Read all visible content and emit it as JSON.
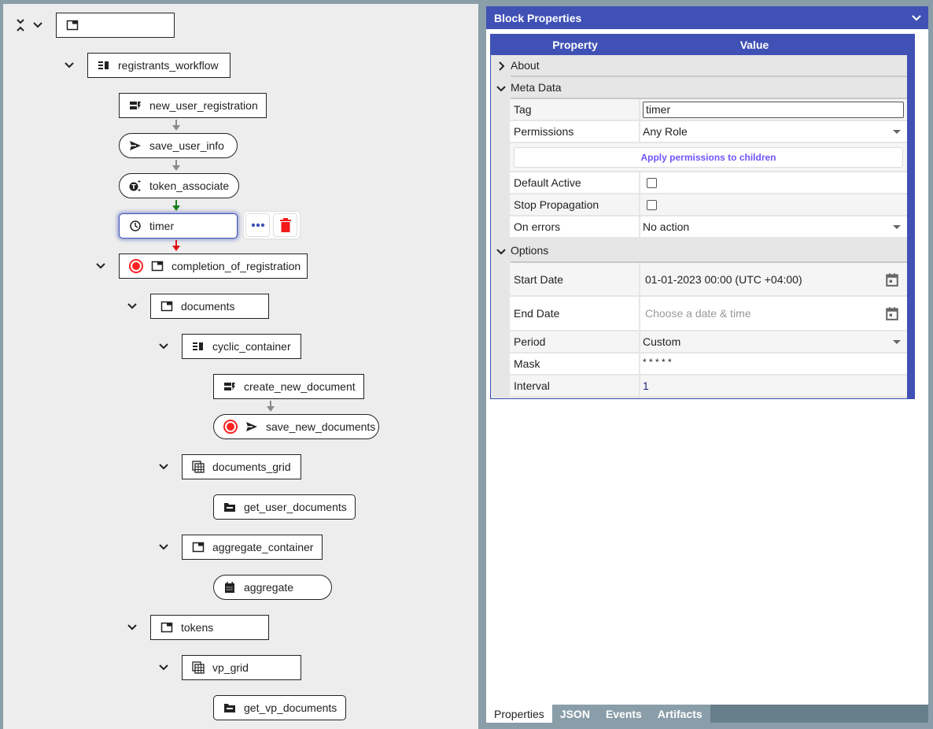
{
  "tree": {
    "root": {
      "label": ""
    },
    "nodes": [
      {
        "label": "registrants_workflow",
        "icon": "workflow-icon"
      },
      {
        "label": "new_user_registration",
        "icon": "request-document-icon"
      },
      {
        "label": "save_user_info",
        "icon": "send-icon"
      },
      {
        "label": "token_associate",
        "icon": "token-icon"
      },
      {
        "label": "timer",
        "icon": "clock-icon"
      },
      {
        "label": "completion_of_registration",
        "icon": "container-icon"
      },
      {
        "label": "documents",
        "icon": "container-icon"
      },
      {
        "label": "cyclic_container",
        "icon": "workflow-icon"
      },
      {
        "label": "create_new_document",
        "icon": "request-document-icon"
      },
      {
        "label": "save_new_documents",
        "icon": "send-icon"
      },
      {
        "label": "documents_grid",
        "icon": "grid-icon"
      },
      {
        "label": "get_user_documents",
        "icon": "folder-icon"
      },
      {
        "label": "aggregate_container",
        "icon": "container-icon"
      },
      {
        "label": "aggregate",
        "icon": "calendar-icon"
      },
      {
        "label": "tokens",
        "icon": "container-icon"
      },
      {
        "label": "vp_grid",
        "icon": "grid-icon"
      },
      {
        "label": "get_vp_documents",
        "icon": "folder-icon"
      }
    ],
    "colors": {
      "arrow_default": "#8a8a8a",
      "arrow_success": "#1a7f1a",
      "arrow_error": "#e0101a",
      "selected": "#3f51b5",
      "delete": "#f21b1b"
    }
  },
  "panel": {
    "title": "Block Properties",
    "columns": {
      "property": "Property",
      "value": "Value"
    },
    "groups": {
      "about": "About",
      "meta": "Meta Data",
      "options": "Options"
    },
    "meta": {
      "tag_label": "Tag",
      "tag_value": "timer",
      "permissions_label": "Permissions",
      "permissions_value": "Any Role",
      "apply_button": "Apply permissions to children",
      "default_active_label": "Default Active",
      "default_active": false,
      "stop_propagation_label": "Stop Propagation",
      "stop_propagation": false,
      "on_errors_label": "On errors",
      "on_errors_value": "No action"
    },
    "options": {
      "start_date_label": "Start Date",
      "start_date_value": "01-01-2023 00:00 (UTC +04:00)",
      "end_date_label": "End Date",
      "end_date_placeholder": "Choose a date & time",
      "period_label": "Period",
      "period_value": "Custom",
      "mask_label": "Mask",
      "mask_value": "* * * * *",
      "interval_label": "Interval",
      "interval_value": "1"
    },
    "tabs": [
      "Properties",
      "JSON",
      "Events",
      "Artifacts"
    ],
    "active_tab": "Properties",
    "accent": "#3f51b5"
  }
}
